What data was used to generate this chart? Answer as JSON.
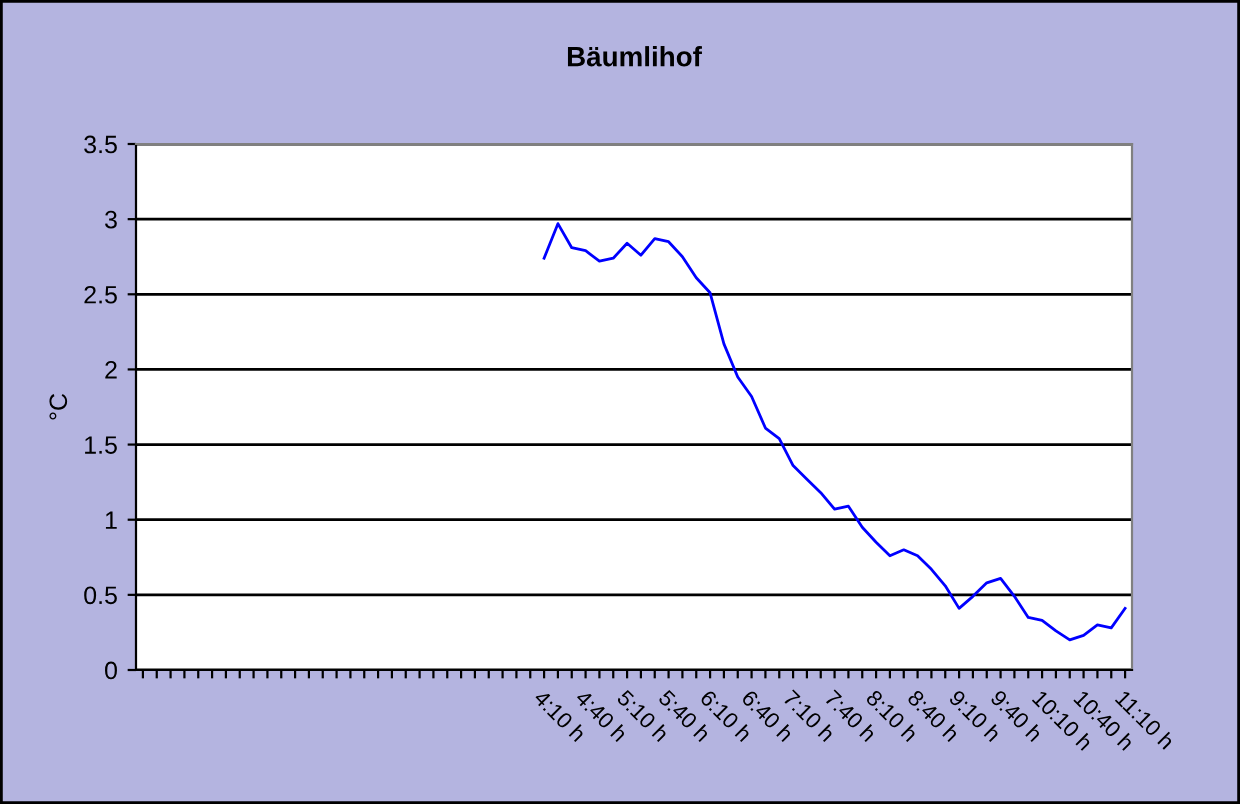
{
  "chart_data": {
    "type": "line",
    "title": "Bäumlihof",
    "ylabel": "°C",
    "categories": [
      null,
      null,
      null,
      null,
      null,
      null,
      null,
      null,
      null,
      null,
      null,
      null,
      null,
      null,
      null,
      null,
      null,
      null,
      null,
      null,
      null,
      null,
      null,
      null,
      null,
      null,
      null,
      null,
      null,
      "4:10 h",
      null,
      null,
      "4:40 h",
      null,
      null,
      "5:10 h",
      null,
      null,
      "5:40 h",
      null,
      null,
      "6:10 h",
      null,
      null,
      "6:40 h",
      null,
      null,
      "7:10 h",
      null,
      null,
      "7:40 h",
      null,
      null,
      "8:10 h",
      null,
      null,
      "8:40 h",
      null,
      null,
      "9:10 h",
      null,
      null,
      "9:40 h",
      null,
      null,
      "10:10 h",
      null,
      null,
      "10:40 h",
      null,
      null,
      "11:10 h"
    ],
    "series": [
      {
        "color": "#0000ff",
        "values": [
          null,
          null,
          null,
          null,
          null,
          null,
          null,
          null,
          null,
          null,
          null,
          null,
          null,
          null,
          null,
          null,
          null,
          null,
          null,
          null,
          null,
          null,
          null,
          null,
          null,
          null,
          null,
          null,
          null,
          2.74,
          2.97,
          2.81,
          2.79,
          2.72,
          2.74,
          2.84,
          2.76,
          2.87,
          2.85,
          2.75,
          2.61,
          2.51,
          2.17,
          1.95,
          1.82,
          1.61,
          1.54,
          1.36,
          1.27,
          1.18,
          1.07,
          1.09,
          0.95,
          0.85,
          0.76,
          0.8,
          0.76,
          0.67,
          0.56,
          0.41,
          0.49,
          0.58,
          0.61,
          0.49,
          0.35,
          0.33,
          0.26,
          0.2,
          0.23,
          0.3,
          0.28,
          0.41
        ]
      }
    ],
    "ylim": [
      0,
      3.5
    ],
    "yticks": [
      0,
      0.5,
      1,
      1.5,
      2,
      2.5,
      3,
      3.5
    ],
    "grid": "y",
    "legend": false,
    "marker": "none",
    "line_style": "solid"
  }
}
